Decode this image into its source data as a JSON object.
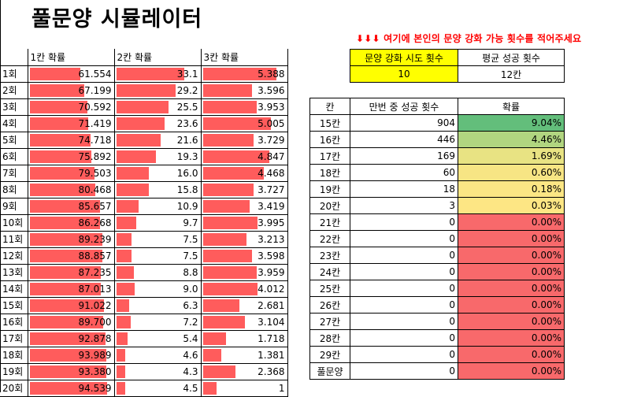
{
  "title": "풀문양 시뮬레이터",
  "notice": "⬇⬇⬇ 여기에 본인의 문양 강화 가능 횟수를 적어주세요",
  "left_table": {
    "headers": [
      "1칸 확률",
      "2칸 확률",
      "3칸 확률"
    ],
    "rows": [
      {
        "label": "1회",
        "v1": "61.554",
        "v2": "33.1",
        "v3": "5.388"
      },
      {
        "label": "2회",
        "v1": "67.199",
        "v2": "29.2",
        "v3": "3.596"
      },
      {
        "label": "3회",
        "v1": "70.592",
        "v2": "25.5",
        "v3": "3.953"
      },
      {
        "label": "4회",
        "v1": "71.419",
        "v2": "23.6",
        "v3": "5.005"
      },
      {
        "label": "5회",
        "v1": "74.718",
        "v2": "21.6",
        "v3": "3.729"
      },
      {
        "label": "6회",
        "v1": "75.892",
        "v2": "19.3",
        "v3": "4.847"
      },
      {
        "label": "7회",
        "v1": "79.503",
        "v2": "16.0",
        "v3": "4.468"
      },
      {
        "label": "8회",
        "v1": "80.468",
        "v2": "15.8",
        "v3": "3.727"
      },
      {
        "label": "9회",
        "v1": "85.657",
        "v2": "10.9",
        "v3": "3.419"
      },
      {
        "label": "10회",
        "v1": "86.268",
        "v2": "9.7",
        "v3": "3.995"
      },
      {
        "label": "11회",
        "v1": "89.239",
        "v2": "7.5",
        "v3": "3.213"
      },
      {
        "label": "12회",
        "v1": "88.857",
        "v2": "7.5",
        "v3": "3.598"
      },
      {
        "label": "13회",
        "v1": "87.235",
        "v2": "8.8",
        "v3": "3.959"
      },
      {
        "label": "14회",
        "v1": "87.013",
        "v2": "9.0",
        "v3": "4.012"
      },
      {
        "label": "15회",
        "v1": "91.022",
        "v2": "6.3",
        "v3": "2.681"
      },
      {
        "label": "16회",
        "v1": "89.700",
        "v2": "7.2",
        "v3": "3.104"
      },
      {
        "label": "17회",
        "v1": "92.878",
        "v2": "5.4",
        "v3": "1.718"
      },
      {
        "label": "18회",
        "v1": "93.989",
        "v2": "4.6",
        "v3": "1.381"
      },
      {
        "label": "19회",
        "v1": "93.380",
        "v2": "4.3",
        "v3": "2.368"
      },
      {
        "label": "20회",
        "v1": "94.539",
        "v2": "4.5",
        "v3": "1"
      }
    ]
  },
  "input_table": {
    "headers": [
      "문양 강화 시도 횟수",
      "평균 성공 횟수"
    ],
    "values": [
      "10",
      "12칸"
    ]
  },
  "result_table": {
    "headers": [
      "칸",
      "만번 중 성공 횟수",
      "확률"
    ],
    "rows": [
      {
        "label": "15칸",
        "count": "904",
        "prob": "9.04%",
        "color": "#63be7b"
      },
      {
        "label": "16칸",
        "count": "446",
        "prob": "4.46%",
        "color": "#b1d580"
      },
      {
        "label": "17칸",
        "count": "169",
        "prob": "1.69%",
        "color": "#e8e383"
      },
      {
        "label": "18칸",
        "count": "60",
        "prob": "0.60%",
        "color": "#f7e584"
      },
      {
        "label": "19칸",
        "count": "18",
        "prob": "0.18%",
        "color": "#fbe684"
      },
      {
        "label": "20칸",
        "count": "3",
        "prob": "0.03%",
        "color": "#fde684"
      },
      {
        "label": "21칸",
        "count": "0",
        "prob": "0.00%",
        "color": "#f8696b"
      },
      {
        "label": "22칸",
        "count": "0",
        "prob": "0.00%",
        "color": "#f8696b"
      },
      {
        "label": "23칸",
        "count": "0",
        "prob": "0.00%",
        "color": "#f8696b"
      },
      {
        "label": "24칸",
        "count": "0",
        "prob": "0.00%",
        "color": "#f8696b"
      },
      {
        "label": "25칸",
        "count": "0",
        "prob": "0.00%",
        "color": "#f8696b"
      },
      {
        "label": "26칸",
        "count": "0",
        "prob": "0.00%",
        "color": "#f8696b"
      },
      {
        "label": "27칸",
        "count": "0",
        "prob": "0.00%",
        "color": "#f8696b"
      },
      {
        "label": "28칸",
        "count": "0",
        "prob": "0.00%",
        "color": "#f8696b"
      },
      {
        "label": "29칸",
        "count": "0",
        "prob": "0.00%",
        "color": "#f8696b"
      },
      {
        "label": "풀문양",
        "count": "0",
        "prob": "0.00%",
        "color": "#f8696b"
      }
    ]
  },
  "colors": {
    "bar": "#ff5c5c",
    "input_highlight": "#ffff00",
    "notice": "#ff0000"
  }
}
